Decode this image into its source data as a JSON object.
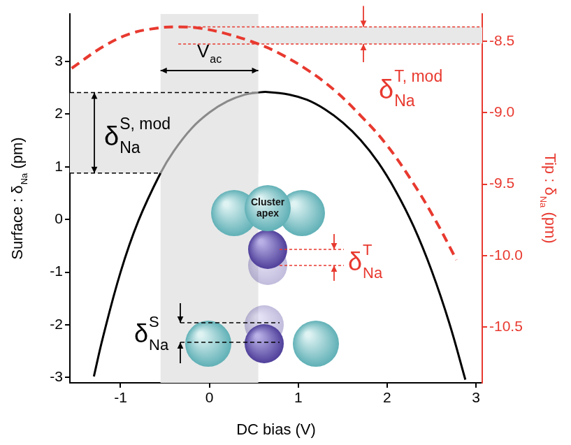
{
  "chart_data": {
    "type": "line",
    "x_label": [
      {
        "text": "DC bias (V)"
      }
    ],
    "y_label": [
      {
        "text": "Surface : δ"
      },
      {
        "sub": "Na"
      },
      {
        "text": " (pm)"
      }
    ],
    "y2_label": [
      {
        "text": "Tip : δ"
      },
      {
        "sub": "Na"
      },
      {
        "text": " (pm)"
      }
    ],
    "xlim": [
      -1.57,
      3.07
    ],
    "xticks": [
      -1,
      0,
      1,
      2,
      3
    ],
    "ylim": [
      -3.1,
      3.9
    ],
    "yticks": [
      -3,
      -2,
      -1,
      0,
      1,
      2,
      3
    ],
    "y2lim": [
      -10.89,
      -8.31
    ],
    "y2ticks": [
      -10.5,
      {
        "value": -10,
        "label": "-10.0"
      },
      -9.5,
      {
        "value": -9,
        "label": "-9.0"
      },
      -8.5
    ],
    "grid": false,
    "series": [
      {
        "color": "#000000",
        "line_style": "solid",
        "axis": "y",
        "x": [
          -1.3,
          -1.2,
          -1.0,
          -0.8,
          -0.55,
          -0.4,
          -0.2,
          0,
          0.2,
          0.4,
          0.55,
          0.65,
          0.9,
          1.1,
          1.3,
          1.5,
          1.7,
          1.9,
          2.1,
          2.3,
          2.5,
          2.7,
          2.88
        ],
        "values": [
          -2.98,
          -2.25,
          -1.0,
          -0.03,
          0.88,
          1.3,
          1.73,
          2.03,
          2.24,
          2.37,
          2.41,
          2.42,
          2.37,
          2.27,
          2.09,
          1.84,
          1.51,
          1.08,
          0.53,
          -0.14,
          -0.97,
          -1.97,
          -3.04
        ]
      },
      {
        "color": "#e8392f",
        "line_style": "dashed",
        "axis": "y2",
        "x": [
          -1.55,
          -1.2,
          -0.9,
          -0.6,
          -0.35,
          -0.1,
          0.2,
          0.55,
          0.8,
          1.1,
          1.4,
          1.7,
          2.0,
          2.3,
          2.55,
          2.78
        ],
        "values": [
          -8.69,
          -8.54,
          -8.45,
          -8.41,
          -8.4,
          -8.41,
          -8.45,
          -8.52,
          -8.59,
          -8.7,
          -8.84,
          -9.02,
          -9.23,
          -9.5,
          -9.76,
          -10.03
        ]
      }
    ],
    "annotations": {
      "vac": {
        "label": [
          {
            "text": "V"
          },
          {
            "sub": "ac"
          }
        ],
        "range": [
          -0.55,
          0.55
        ]
      },
      "surface_mod": {
        "label": [
          {
            "text": "δ"
          },
          {
            "sub": "Na",
            "sup": "S, mod"
          }
        ],
        "range": [
          0.88,
          2.41
        ]
      },
      "tip_mod": {
        "label": [
          {
            "text": "δ"
          },
          {
            "sub": "Na",
            "sup": "T, mod"
          }
        ],
        "range": [
          -8.52,
          -8.4
        ]
      },
      "tip_disp": {
        "label": [
          {
            "text": "δ"
          },
          {
            "sub": "Na",
            "sup": "T"
          }
        ]
      },
      "surface_disp": {
        "label": [
          {
            "text": "δ"
          },
          {
            "sub": "Na",
            "sup": "S"
          }
        ]
      },
      "cluster_label": "Cluster apex"
    }
  }
}
